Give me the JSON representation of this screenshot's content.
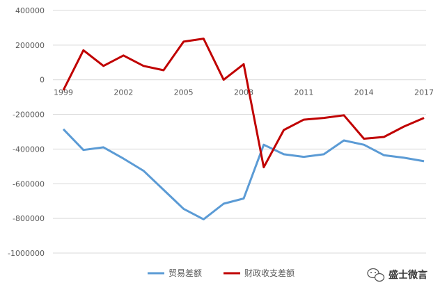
{
  "chart_data": {
    "type": "line",
    "title": "",
    "xlabel": "",
    "ylabel": "",
    "x": [
      "1999",
      "2000",
      "2001",
      "2002",
      "2003",
      "2004",
      "2005",
      "2006",
      "2007",
      "2008",
      "2009",
      "2010",
      "2011",
      "2012",
      "2013",
      "2014",
      "2015",
      "2016",
      "2017"
    ],
    "x_tick_labels": [
      "1999",
      "2002",
      "2005",
      "2008",
      "2011",
      "2014",
      "2017"
    ],
    "ylim": [
      -1000000,
      400000
    ],
    "y_ticks": [
      400000,
      200000,
      0,
      -200000,
      -400000,
      -600000,
      -800000,
      -1000000
    ],
    "y_tick_labels": [
      "400000",
      "200000",
      "0",
      "-200000",
      "-400000",
      "-600000",
      "-800000",
      "-1000000"
    ],
    "grid": true,
    "legend_position": "bottom",
    "series": [
      {
        "name": "贸易差额",
        "color": "#5b9bd5",
        "values": [
          -285000,
          -405000,
          -390000,
          -455000,
          -525000,
          -635000,
          -745000,
          -805000,
          -715000,
          -685000,
          -375000,
          -430000,
          -445000,
          -430000,
          -350000,
          -375000,
          -435000,
          -450000,
          -470000
        ]
      },
      {
        "name": "财政收支差额",
        "color": "#c00000",
        "values": [
          -60000,
          170000,
          80000,
          140000,
          80000,
          55000,
          220000,
          237000,
          0,
          90000,
          -505000,
          -290000,
          -230000,
          -220000,
          -205000,
          -340000,
          -330000,
          -270000,
          -220000
        ]
      }
    ]
  },
  "watermark": {
    "text": "盛士微言",
    "icon": "wechat-icon"
  }
}
